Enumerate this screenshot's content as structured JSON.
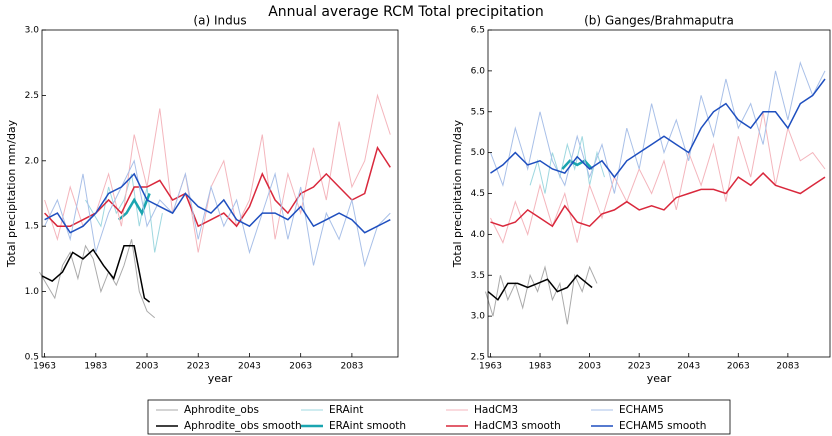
{
  "title": "Annual average RCM Total precipitation",
  "chart_data": [
    {
      "type": "line",
      "title": "(a) Indus",
      "xlabel": "year",
      "ylabel": "Total precipitation mm/day",
      "xlim": [
        1962,
        2101
      ],
      "ylim": [
        0.5,
        3.0
      ],
      "xticks": [
        1963,
        1983,
        2003,
        2023,
        2043,
        2063,
        2083
      ],
      "yticks": [
        0.5,
        {
          "value": 1.0,
          "label": "1.0"
        },
        1.5,
        {
          "value": 2.0,
          "label": "2.0"
        },
        2.5,
        {
          "value": 3.0,
          "label": "3.0"
        }
      ],
      "series": [
        {
          "name": "Aphrodite_obs",
          "color": "#aaaaaa",
          "linewidth": 1,
          "x": [
            1961,
            1964,
            1967,
            1970,
            1973,
            1976,
            1979,
            1982,
            1985,
            1988,
            1991,
            1994,
            1997,
            2000,
            2003,
            2006
          ],
          "values": [
            1.15,
            1.05,
            0.95,
            1.2,
            1.3,
            1.1,
            1.35,
            1.25,
            1.0,
            1.15,
            1.05,
            1.2,
            1.4,
            1.0,
            0.85,
            0.8
          ]
        },
        {
          "name": "Aphrodite_obs smooth",
          "color": "#000000",
          "linewidth": 1.5,
          "x": [
            1962,
            1966,
            1970,
            1974,
            1978,
            1982,
            1986,
            1990,
            1994,
            1998,
            2002,
            2004
          ],
          "values": [
            1.12,
            1.08,
            1.15,
            1.3,
            1.25,
            1.32,
            1.2,
            1.1,
            1.35,
            1.35,
            0.95,
            0.92
          ]
        },
        {
          "name": "ERAint",
          "color": "#9fd8e0",
          "linewidth": 1,
          "x": [
            1979,
            1982,
            1985,
            1988,
            1991,
            1994,
            1997,
            2000,
            2003,
            2006,
            2009
          ],
          "values": [
            1.7,
            1.6,
            1.5,
            1.8,
            1.6,
            1.7,
            1.9,
            1.5,
            1.8,
            1.3,
            1.6
          ]
        },
        {
          "name": "ERAint smooth",
          "color": "#1aa5b0",
          "linewidth": 2.5,
          "x": [
            1992,
            1995,
            1998,
            2001,
            2004
          ],
          "values": [
            1.55,
            1.6,
            1.7,
            1.6,
            1.75
          ]
        },
        {
          "name": "HadCM3",
          "color": "#f4b6bd",
          "linewidth": 1,
          "x": [
            1963,
            1968,
            1973,
            1978,
            1983,
            1988,
            1993,
            1998,
            2003,
            2008,
            2013,
            2018,
            2023,
            2028,
            2033,
            2038,
            2043,
            2048,
            2053,
            2058,
            2063,
            2068,
            2073,
            2078,
            2083,
            2088,
            2093,
            2098
          ],
          "values": [
            1.7,
            1.4,
            1.8,
            1.5,
            1.6,
            1.9,
            1.5,
            2.2,
            1.8,
            2.4,
            1.6,
            1.9,
            1.3,
            1.8,
            2.0,
            1.5,
            1.7,
            2.2,
            1.4,
            1.9,
            1.6,
            2.1,
            1.7,
            2.3,
            1.8,
            2.0,
            2.5,
            2.2
          ]
        },
        {
          "name": "HadCM3 smooth",
          "color": "#d9283c",
          "linewidth": 1.5,
          "x": [
            1963,
            1968,
            1973,
            1978,
            1983,
            1988,
            1993,
            1998,
            2003,
            2008,
            2013,
            2018,
            2023,
            2028,
            2033,
            2038,
            2043,
            2048,
            2053,
            2058,
            2063,
            2068,
            2073,
            2078,
            2083,
            2088,
            2093,
            2098
          ],
          "values": [
            1.6,
            1.5,
            1.5,
            1.55,
            1.6,
            1.7,
            1.6,
            1.8,
            1.8,
            1.85,
            1.7,
            1.75,
            1.5,
            1.55,
            1.6,
            1.5,
            1.65,
            1.9,
            1.7,
            1.6,
            1.75,
            1.8,
            1.9,
            1.8,
            1.7,
            1.75,
            2.1,
            1.95
          ]
        },
        {
          "name": "ECHAM5",
          "color": "#a9c0e8",
          "linewidth": 1,
          "x": [
            1963,
            1968,
            1973,
            1978,
            1983,
            1988,
            1993,
            1998,
            2003,
            2008,
            2013,
            2018,
            2023,
            2028,
            2033,
            2038,
            2043,
            2048,
            2053,
            2058,
            2063,
            2068,
            2073,
            2078,
            2083,
            2088,
            2093,
            2098
          ],
          "values": [
            1.5,
            1.7,
            1.4,
            1.9,
            1.3,
            1.6,
            1.8,
            2.0,
            1.5,
            1.7,
            1.6,
            1.9,
            1.4,
            1.8,
            1.5,
            1.7,
            1.3,
            1.6,
            1.9,
            1.4,
            1.8,
            1.2,
            1.6,
            1.4,
            1.7,
            1.2,
            1.5,
            1.6
          ]
        },
        {
          "name": "ECHAM5 smooth",
          "color": "#1f4fbf",
          "linewidth": 1.5,
          "x": [
            1963,
            1968,
            1973,
            1978,
            1983,
            1988,
            1993,
            1998,
            2003,
            2008,
            2013,
            2018,
            2023,
            2028,
            2033,
            2038,
            2043,
            2048,
            2053,
            2058,
            2063,
            2068,
            2073,
            2078,
            2083,
            2088,
            2093,
            2098
          ],
          "values": [
            1.55,
            1.6,
            1.45,
            1.5,
            1.6,
            1.75,
            1.8,
            1.9,
            1.7,
            1.65,
            1.6,
            1.75,
            1.65,
            1.6,
            1.7,
            1.55,
            1.5,
            1.6,
            1.6,
            1.55,
            1.65,
            1.5,
            1.55,
            1.6,
            1.55,
            1.45,
            1.5,
            1.55
          ]
        }
      ]
    },
    {
      "type": "line",
      "title": "(b) Ganges/Brahmaputra",
      "xlabel": "year",
      "ylabel": "Total precipitation mm/day",
      "xlim": [
        1962,
        2100
      ],
      "ylim": [
        2.5,
        6.5
      ],
      "xticks": [
        1963,
        1983,
        2003,
        2023,
        2043,
        2063,
        2083
      ],
      "yticks": [
        2.5,
        {
          "value": 3.0,
          "label": "3.0"
        },
        3.5,
        {
          "value": 4.0,
          "label": "4.0"
        },
        4.5,
        {
          "value": 5.0,
          "label": "5.0"
        },
        5.5,
        {
          "value": 6.0,
          "label": "6.0"
        },
        6.5
      ],
      "series": [
        {
          "name": "Aphrodite_obs",
          "color": "#aaaaaa",
          "linewidth": 1,
          "x": [
            1961,
            1964,
            1967,
            1970,
            1973,
            1976,
            1979,
            1982,
            1985,
            1988,
            1991,
            1994,
            1997,
            2000,
            2003,
            2006
          ],
          "values": [
            3.3,
            3.0,
            3.5,
            3.2,
            3.4,
            3.1,
            3.5,
            3.3,
            3.6,
            3.2,
            3.4,
            2.9,
            3.5,
            3.3,
            3.6,
            3.4
          ]
        },
        {
          "name": "Aphrodite_obs smooth",
          "color": "#000000",
          "linewidth": 1.5,
          "x": [
            1962,
            1966,
            1970,
            1974,
            1978,
            1982,
            1986,
            1990,
            1994,
            1998,
            2002,
            2004
          ],
          "values": [
            3.3,
            3.2,
            3.4,
            3.4,
            3.35,
            3.4,
            3.45,
            3.3,
            3.35,
            3.5,
            3.4,
            3.35
          ]
        },
        {
          "name": "ERAint",
          "color": "#9fd8e0",
          "linewidth": 1,
          "x": [
            1979,
            1982,
            1985,
            1988,
            1991,
            1994,
            1997,
            2000,
            2003,
            2006,
            2009
          ],
          "values": [
            4.6,
            4.9,
            4.5,
            5.0,
            4.7,
            5.1,
            4.8,
            5.2,
            4.6,
            5.0,
            4.7
          ]
        },
        {
          "name": "ERAint smooth",
          "color": "#1aa5b0",
          "linewidth": 2.5,
          "x": [
            1992,
            1995,
            1998,
            2001,
            2004
          ],
          "values": [
            4.8,
            4.9,
            4.85,
            4.9,
            4.8
          ]
        },
        {
          "name": "HadCM3",
          "color": "#f4b6bd",
          "linewidth": 1,
          "x": [
            1963,
            1968,
            1973,
            1978,
            1983,
            1988,
            1993,
            1998,
            2003,
            2008,
            2013,
            2018,
            2023,
            2028,
            2033,
            2038,
            2043,
            2048,
            2053,
            2058,
            2063,
            2068,
            2073,
            2078,
            2083,
            2088,
            2093,
            2098
          ],
          "values": [
            4.2,
            3.9,
            4.4,
            4.0,
            4.6,
            4.1,
            4.5,
            3.9,
            4.6,
            4.2,
            4.7,
            4.4,
            4.8,
            4.5,
            4.9,
            4.3,
            5.0,
            4.6,
            5.1,
            4.4,
            5.2,
            4.7,
            5.5,
            4.6,
            5.3,
            4.9,
            5.0,
            4.8
          ]
        },
        {
          "name": "HadCM3 smooth",
          "color": "#d9283c",
          "linewidth": 1.5,
          "x": [
            1963,
            1968,
            1973,
            1978,
            1983,
            1988,
            1993,
            1998,
            2003,
            2008,
            2013,
            2018,
            2023,
            2028,
            2033,
            2038,
            2043,
            2048,
            2053,
            2058,
            2063,
            2068,
            2073,
            2078,
            2083,
            2088,
            2093,
            2098
          ],
          "values": [
            4.15,
            4.1,
            4.15,
            4.3,
            4.2,
            4.1,
            4.35,
            4.15,
            4.1,
            4.25,
            4.3,
            4.4,
            4.3,
            4.35,
            4.3,
            4.45,
            4.5,
            4.55,
            4.55,
            4.5,
            4.7,
            4.6,
            4.75,
            4.6,
            4.55,
            4.5,
            4.6,
            4.7
          ]
        },
        {
          "name": "ECHAM5",
          "color": "#a9c0e8",
          "linewidth": 1,
          "x": [
            1963,
            1968,
            1973,
            1978,
            1983,
            1988,
            1993,
            1998,
            2003,
            2008,
            2013,
            2018,
            2023,
            2028,
            2033,
            2038,
            2043,
            2048,
            2053,
            2058,
            2063,
            2068,
            2073,
            2078,
            2083,
            2088,
            2093,
            2098
          ],
          "values": [
            5.0,
            4.6,
            5.3,
            4.8,
            5.5,
            4.9,
            4.6,
            5.2,
            4.7,
            5.1,
            4.5,
            5.3,
            4.8,
            5.6,
            5.0,
            5.4,
            4.9,
            5.7,
            5.2,
            5.9,
            5.3,
            5.6,
            5.1,
            6.0,
            5.4,
            6.1,
            5.7,
            6.0
          ]
        },
        {
          "name": "ECHAM5 smooth",
          "color": "#1f4fbf",
          "linewidth": 1.5,
          "x": [
            1963,
            1968,
            1973,
            1978,
            1983,
            1988,
            1993,
            1998,
            2003,
            2008,
            2013,
            2018,
            2023,
            2028,
            2033,
            2038,
            2043,
            2048,
            2053,
            2058,
            2063,
            2068,
            2073,
            2078,
            2083,
            2088,
            2093,
            2098
          ],
          "values": [
            4.75,
            4.85,
            5.0,
            4.85,
            4.9,
            4.8,
            4.75,
            4.95,
            4.8,
            4.9,
            4.7,
            4.9,
            5.0,
            5.1,
            5.2,
            5.1,
            5.0,
            5.3,
            5.5,
            5.6,
            5.4,
            5.3,
            5.5,
            5.5,
            5.3,
            5.6,
            5.7,
            5.9
          ]
        }
      ]
    }
  ]
}
